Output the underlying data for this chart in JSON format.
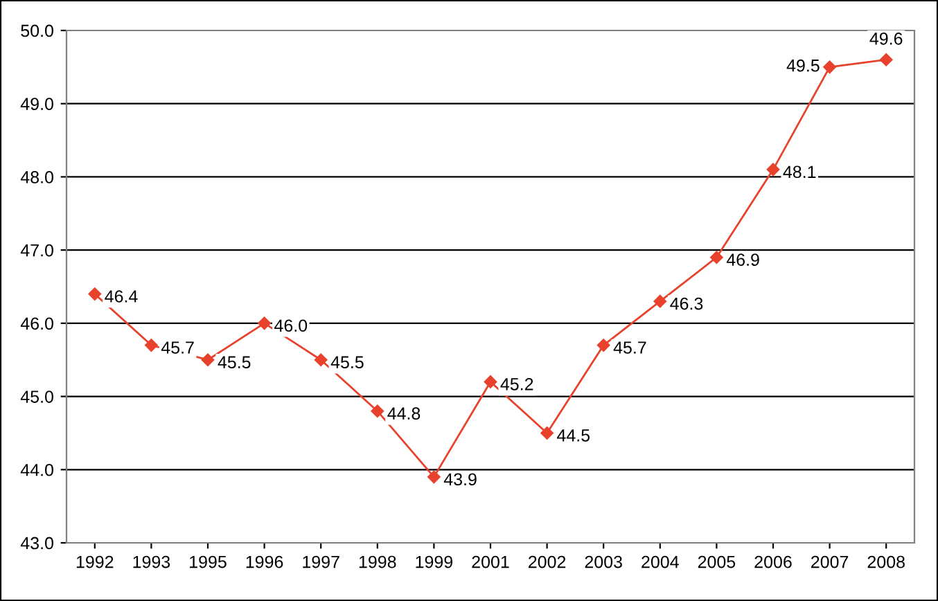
{
  "chart_data": {
    "type": "line",
    "categories": [
      "1992",
      "1993",
      "1995",
      "1996",
      "1997",
      "1998",
      "1999",
      "2001",
      "2002",
      "2003",
      "2004",
      "2005",
      "2006",
      "2007",
      "2008"
    ],
    "values": [
      46.4,
      45.7,
      45.5,
      46.0,
      45.5,
      44.8,
      43.9,
      45.2,
      44.5,
      45.7,
      46.3,
      46.9,
      48.1,
      49.5,
      49.6
    ],
    "color": "#e8412c",
    "ylim": [
      43.0,
      50.0
    ],
    "yticks": [
      {
        "value": 43,
        "label": "43.0"
      },
      {
        "value": 44,
        "label": "44.0"
      },
      {
        "value": 45,
        "label": "45.0"
      },
      {
        "value": 46,
        "label": "46.0"
      },
      {
        "value": 47,
        "label": "47.0"
      },
      {
        "value": 48,
        "label": "48.0"
      },
      {
        "value": 49,
        "label": "49.0"
      },
      {
        "value": 50,
        "label": "50.0"
      }
    ],
    "value_labels": [
      "46.4",
      "45.7",
      "45.5",
      "46.0",
      "45.5",
      "44.8",
      "43.9",
      "45.2",
      "44.5",
      "45.7",
      "46.3",
      "46.9",
      "48.1",
      "49.5",
      "49.6"
    ],
    "grid": "y",
    "marker": "diamond",
    "line_style": "solid"
  }
}
